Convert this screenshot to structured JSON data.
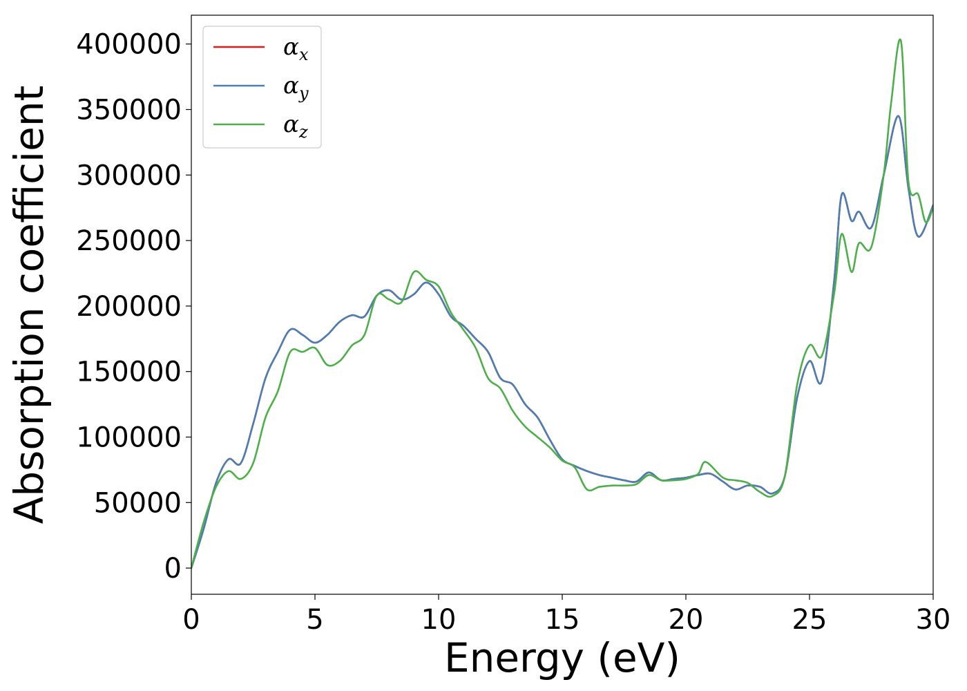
{
  "chart_data": {
    "type": "line",
    "xlabel": "Energy (eV)",
    "ylabel": "Absorption coefficient",
    "xlim": [
      0,
      30
    ],
    "ylim": [
      -20000,
      422000
    ],
    "xticks": [
      0,
      5,
      10,
      15,
      20,
      25,
      30
    ],
    "yticks": [
      0,
      50000,
      100000,
      150000,
      200000,
      250000,
      300000,
      350000,
      400000
    ],
    "grid": false,
    "legend_position": "top-left",
    "series": [
      {
        "name": "α_x",
        "legend_symbol": "α",
        "legend_subscript": "x",
        "color": "#e41a1c",
        "x": [
          0,
          0.5,
          1.0,
          1.5,
          2.0,
          2.5,
          3.0,
          3.5,
          4.0,
          4.5,
          5.0,
          5.5,
          6.0,
          6.5,
          7.0,
          7.5,
          8.0,
          8.5,
          9.0,
          9.5,
          10.0,
          10.5,
          11.0,
          11.5,
          12.0,
          12.5,
          13.0,
          13.5,
          14.0,
          14.5,
          15.0,
          15.5,
          16.0,
          16.5,
          17.0,
          17.5,
          18.0,
          18.5,
          19.0,
          19.5,
          20.0,
          20.5,
          21.0,
          21.5,
          22.0,
          22.5,
          23.0,
          23.5,
          24.0,
          24.5,
          25.0,
          25.5,
          26.0,
          26.3,
          26.7,
          27.0,
          27.5,
          28.0,
          28.6,
          29.0,
          29.4,
          30.0
        ],
        "y": [
          0,
          30000,
          65000,
          83000,
          80000,
          110000,
          145000,
          165000,
          182000,
          178000,
          172000,
          178000,
          188000,
          193000,
          192000,
          208000,
          212000,
          205000,
          209000,
          218000,
          209000,
          192000,
          185000,
          175000,
          165000,
          145000,
          140000,
          125000,
          115000,
          98000,
          83000,
          78000,
          74000,
          71000,
          69000,
          67000,
          66000,
          73000,
          67000,
          68000,
          69000,
          71000,
          72000,
          66000,
          60000,
          63000,
          62000,
          57000,
          70000,
          130000,
          158000,
          143000,
          220000,
          285000,
          265000,
          272000,
          260000,
          300000,
          345000,
          290000,
          253000,
          277000
        ]
      },
      {
        "name": "α_y",
        "legend_symbol": "α",
        "legend_subscript": "y",
        "color": "#4a7fb5",
        "x": [
          0,
          0.5,
          1.0,
          1.5,
          2.0,
          2.5,
          3.0,
          3.5,
          4.0,
          4.5,
          5.0,
          5.5,
          6.0,
          6.5,
          7.0,
          7.5,
          8.0,
          8.5,
          9.0,
          9.5,
          10.0,
          10.5,
          11.0,
          11.5,
          12.0,
          12.5,
          13.0,
          13.5,
          14.0,
          14.5,
          15.0,
          15.5,
          16.0,
          16.5,
          17.0,
          17.5,
          18.0,
          18.5,
          19.0,
          19.5,
          20.0,
          20.5,
          21.0,
          21.5,
          22.0,
          22.5,
          23.0,
          23.5,
          24.0,
          24.5,
          25.0,
          25.5,
          26.0,
          26.3,
          26.7,
          27.0,
          27.5,
          28.0,
          28.6,
          29.0,
          29.4,
          30.0
        ],
        "y": [
          0,
          30000,
          65000,
          83000,
          80000,
          110000,
          145000,
          165000,
          182000,
          178000,
          172000,
          178000,
          188000,
          193000,
          192000,
          208000,
          212000,
          205000,
          209000,
          218000,
          209000,
          192000,
          185000,
          175000,
          165000,
          145000,
          140000,
          125000,
          115000,
          98000,
          83000,
          78000,
          74000,
          71000,
          69000,
          67000,
          66000,
          73000,
          67000,
          68000,
          69000,
          71000,
          72000,
          66000,
          60000,
          63000,
          62000,
          57000,
          70000,
          130000,
          158000,
          143000,
          220000,
          285000,
          265000,
          272000,
          260000,
          300000,
          345000,
          290000,
          253000,
          277000
        ]
      },
      {
        "name": "α_z",
        "legend_symbol": "α",
        "legend_subscript": "z",
        "color": "#4daf4a",
        "x": [
          0,
          0.5,
          1.0,
          1.5,
          2.0,
          2.5,
          3.0,
          3.5,
          4.0,
          4.5,
          5.0,
          5.5,
          6.0,
          6.5,
          7.0,
          7.5,
          8.0,
          8.5,
          9.0,
          9.5,
          10.0,
          10.5,
          11.0,
          11.5,
          12.0,
          12.5,
          13.0,
          13.5,
          14.0,
          14.5,
          15.0,
          15.5,
          16.0,
          16.5,
          17.0,
          17.5,
          18.0,
          18.5,
          19.0,
          19.5,
          20.0,
          20.5,
          20.8,
          21.5,
          22.0,
          22.5,
          23.0,
          23.5,
          24.0,
          24.5,
          25.0,
          25.5,
          26.0,
          26.3,
          26.7,
          27.0,
          27.5,
          28.0,
          28.3,
          28.7,
          29.0,
          29.4,
          29.7,
          30.0
        ],
        "y": [
          0,
          35000,
          62000,
          74000,
          68000,
          80000,
          115000,
          135000,
          165000,
          165000,
          168000,
          155000,
          158000,
          170000,
          178000,
          208000,
          205000,
          203000,
          226000,
          220000,
          215000,
          195000,
          182000,
          168000,
          145000,
          137000,
          120000,
          108000,
          100000,
          92000,
          82000,
          77000,
          60000,
          62000,
          63000,
          63000,
          64000,
          71000,
          67000,
          67000,
          68000,
          72000,
          81000,
          69000,
          67000,
          65000,
          58000,
          55000,
          70000,
          140000,
          170000,
          162000,
          210000,
          255000,
          226000,
          248000,
          245000,
          300000,
          355000,
          402000,
          295000,
          285000,
          264000,
          275000
        ]
      }
    ]
  }
}
